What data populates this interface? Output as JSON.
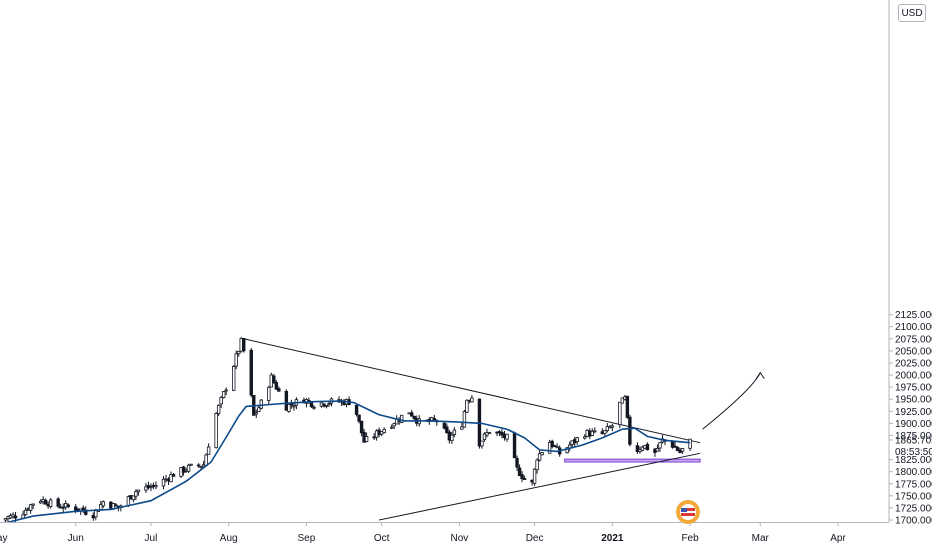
{
  "currency": "USD",
  "price_scale": {
    "labels": [
      "2125.000",
      "2100.000",
      "2075.000",
      "2050.000",
      "2025.000",
      "2000.000",
      "1975.000",
      "1950.000",
      "1925.000",
      "1900.000",
      "1875.000",
      "1825.000",
      "1800.000",
      "1775.000",
      "1750.000",
      "1725.000",
      "1700.000"
    ],
    "last_price": "1865.705",
    "countdown": "08:53:50"
  },
  "colors": {
    "up": "#ffffff",
    "down": "#131722",
    "wick": "#131722",
    "ma": "#0d4a8c",
    "trendline": "#131722",
    "support_zone_fill": "#c8a8f0",
    "support_zone_stroke": "#7b3fd1"
  },
  "logo_text": "7",
  "chart_data": {
    "type": "candlestick",
    "title": "",
    "xlabel": "",
    "ylabel": "",
    "ylim": [
      1695,
      2135
    ],
    "time_labels": [
      {
        "label": "May",
        "date": "2020-05-01"
      },
      {
        "label": "Jun",
        "date": "2020-06-01"
      },
      {
        "label": "Jul",
        "date": "2020-07-01"
      },
      {
        "label": "Aug",
        "date": "2020-08-01"
      },
      {
        "label": "Sep",
        "date": "2020-09-01"
      },
      {
        "label": "Oct",
        "date": "2020-10-01"
      },
      {
        "label": "Nov",
        "date": "2020-11-01"
      },
      {
        "label": "Dec",
        "date": "2020-12-01"
      },
      {
        "label": "2021",
        "date": "2021-01-01",
        "bold": true
      },
      {
        "label": "Feb",
        "date": "2021-02-01"
      },
      {
        "label": "Mar",
        "date": "2021-03-01"
      },
      {
        "label": "Apr",
        "date": "2021-04-01"
      }
    ],
    "close_path": [
      [
        "2020-05-01",
        1700
      ],
      [
        "2020-05-10",
        1712
      ],
      [
        "2020-05-17",
        1745
      ],
      [
        "2020-05-24",
        1730
      ],
      [
        "2020-06-01",
        1725
      ],
      [
        "2020-06-08",
        1712
      ],
      [
        "2020-06-12",
        1738
      ],
      [
        "2020-06-18",
        1725
      ],
      [
        "2020-06-25",
        1760
      ],
      [
        "2020-07-03",
        1772
      ],
      [
        "2020-07-10",
        1795
      ],
      [
        "2020-07-16",
        1808
      ],
      [
        "2020-07-22",
        1815
      ],
      [
        "2020-07-27",
        1920
      ],
      [
        "2020-07-31",
        1975
      ],
      [
        "2020-08-06",
        2068
      ],
      [
        "2020-08-08",
        2030
      ],
      [
        "2020-08-11",
        1915
      ],
      [
        "2020-08-14",
        1942
      ],
      [
        "2020-08-18",
        1995
      ],
      [
        "2020-08-24",
        1935
      ],
      [
        "2020-08-31",
        1950
      ],
      [
        "2020-09-04",
        1940
      ],
      [
        "2020-09-12",
        1945
      ],
      [
        "2020-09-18",
        1945
      ],
      [
        "2020-09-21",
        1920
      ],
      [
        "2020-09-24",
        1862
      ],
      [
        "2020-09-28",
        1875
      ],
      [
        "2020-10-05",
        1900
      ],
      [
        "2020-10-12",
        1925
      ],
      [
        "2020-10-16",
        1902
      ],
      [
        "2020-10-23",
        1905
      ],
      [
        "2020-10-28",
        1868
      ],
      [
        "2020-11-02",
        1900
      ],
      [
        "2020-11-04",
        1950
      ],
      [
        "2020-11-06",
        1955
      ],
      [
        "2020-11-09",
        1860
      ],
      [
        "2020-11-13",
        1885
      ],
      [
        "2020-11-20",
        1870
      ],
      [
        "2020-11-24",
        1805
      ],
      [
        "2020-11-27",
        1785
      ],
      [
        "2020-11-30",
        1775
      ],
      [
        "2020-12-02",
        1830
      ],
      [
        "2020-12-07",
        1862
      ],
      [
        "2020-12-11",
        1838
      ],
      [
        "2020-12-15",
        1855
      ],
      [
        "2020-12-21",
        1880
      ],
      [
        "2020-12-28",
        1878
      ],
      [
        "2021-01-01",
        1895
      ],
      [
        "2021-01-04",
        1940
      ],
      [
        "2021-01-06",
        1950
      ],
      [
        "2021-01-08",
        1860
      ],
      [
        "2021-01-11",
        1845
      ],
      [
        "2021-01-13",
        1855
      ],
      [
        "2021-01-18",
        1840
      ],
      [
        "2021-01-21",
        1865
      ],
      [
        "2021-01-25",
        1855
      ],
      [
        "2021-01-28",
        1840
      ],
      [
        "2021-02-01",
        1862
      ]
    ],
    "series": [
      {
        "type": "moving-average",
        "points": [
          [
            "2020-05-01",
            1690
          ],
          [
            "2020-05-15",
            1708
          ],
          [
            "2020-06-01",
            1718
          ],
          [
            "2020-06-15",
            1722
          ],
          [
            "2020-07-01",
            1740
          ],
          [
            "2020-07-15",
            1780
          ],
          [
            "2020-07-25",
            1820
          ],
          [
            "2020-08-01",
            1880
          ],
          [
            "2020-08-05",
            1915
          ],
          [
            "2020-08-08",
            1935
          ],
          [
            "2020-08-15",
            1938
          ],
          [
            "2020-08-25",
            1942
          ],
          [
            "2020-09-05",
            1945
          ],
          [
            "2020-09-15",
            1946
          ],
          [
            "2020-09-20",
            1943
          ],
          [
            "2020-09-30",
            1918
          ],
          [
            "2020-10-10",
            1905
          ],
          [
            "2020-10-20",
            1905
          ],
          [
            "2020-10-31",
            1903
          ],
          [
            "2020-11-10",
            1900
          ],
          [
            "2020-11-20",
            1888
          ],
          [
            "2020-11-27",
            1870
          ],
          [
            "2020-12-03",
            1845
          ],
          [
            "2020-12-10",
            1842
          ],
          [
            "2020-12-20",
            1855
          ],
          [
            "2020-12-28",
            1870
          ],
          [
            "2021-01-05",
            1888
          ],
          [
            "2021-01-10",
            1890
          ],
          [
            "2021-01-15",
            1873
          ],
          [
            "2021-01-22",
            1865
          ],
          [
            "2021-02-01",
            1860
          ]
        ]
      }
    ],
    "annotations": [
      {
        "type": "trendline",
        "name": "resistance",
        "points": [
          [
            "2020-08-07",
            2075
          ],
          [
            "2021-02-05",
            1860
          ]
        ]
      },
      {
        "type": "trendline",
        "name": "support",
        "points": [
          [
            "2020-09-30",
            1700
          ],
          [
            "2021-02-05",
            1838
          ]
        ]
      },
      {
        "type": "rectangle",
        "name": "support-zone",
        "x": [
          "2020-12-13",
          "2021-02-05"
        ],
        "y": [
          1820,
          1826
        ]
      },
      {
        "type": "curved-arrow",
        "name": "projection",
        "points": [
          [
            "2021-02-06",
            1888
          ],
          [
            "2021-03-01",
            2005
          ]
        ]
      }
    ]
  }
}
